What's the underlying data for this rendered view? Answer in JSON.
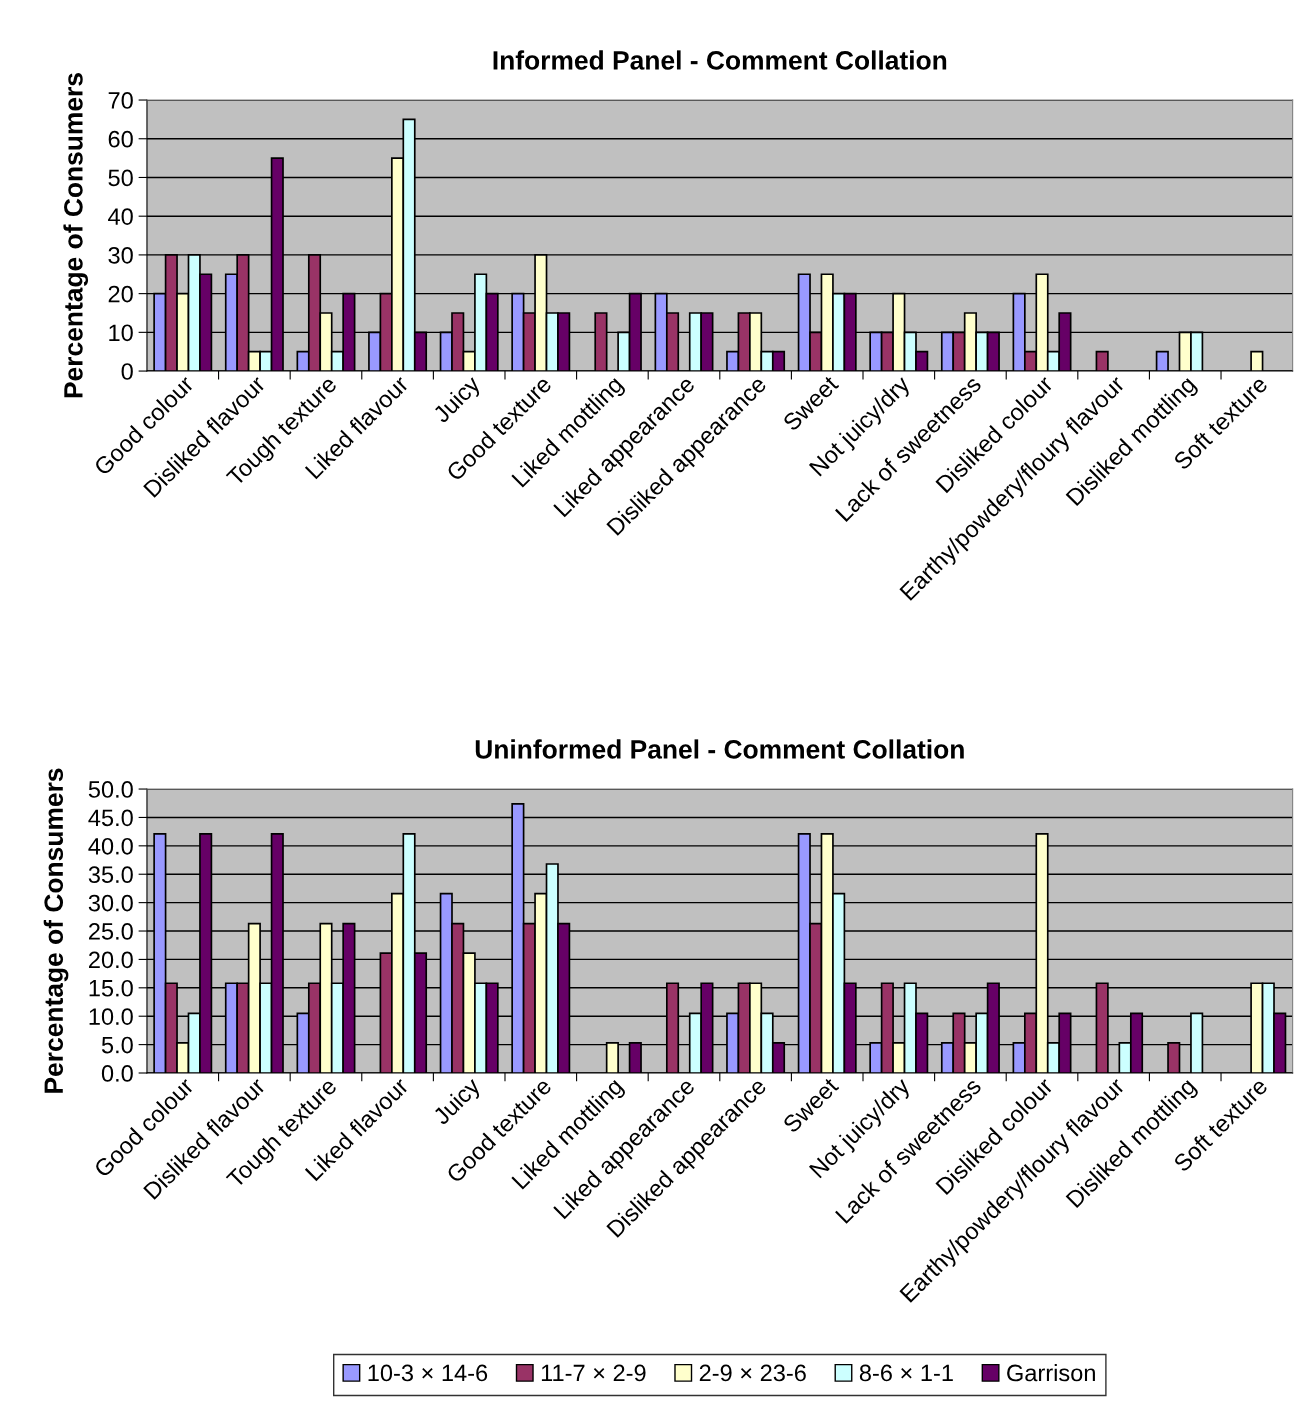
{
  "chart_data": [
    {
      "type": "bar",
      "title": "Informed Panel - Comment Collation",
      "ylabel": "Percentage of Consumers",
      "categories": [
        "Good colour",
        "Disliked flavour",
        "Tough texture",
        "Liked flavour",
        "Juicy",
        "Good texture",
        "Liked mottling",
        "Liked appearance",
        "Disliked appearance",
        "Sweet",
        "Not juicy/dry",
        "Lack of sweetness",
        "Disliked colour",
        "Earthy/powdery/floury flavour",
        "Disliked mottling",
        "Soft texture"
      ],
      "series": [
        {
          "color": "#9999ff",
          "values": [
            20,
            25,
            5,
            10,
            10,
            20,
            null,
            20,
            5,
            25,
            10,
            10,
            20,
            null,
            5,
            null
          ]
        },
        {
          "color": "#993366",
          "values": [
            30,
            30,
            30,
            20,
            15,
            15,
            15,
            15,
            15,
            10,
            10,
            10,
            5,
            5,
            null,
            null
          ]
        },
        {
          "color": "#ffffcc",
          "values": [
            20,
            5,
            15,
            55,
            5,
            30,
            null,
            null,
            15,
            25,
            20,
            15,
            25,
            null,
            10,
            5
          ]
        },
        {
          "color": "#ccffff",
          "values": [
            30,
            5,
            5,
            65,
            25,
            15,
            10,
            15,
            5,
            20,
            10,
            10,
            5,
            null,
            10,
            null
          ]
        },
        {
          "color": "#660066",
          "values": [
            25,
            55,
            20,
            10,
            20,
            15,
            20,
            15,
            5,
            20,
            5,
            10,
            15,
            null,
            null,
            null
          ]
        }
      ],
      "ylim": [
        0,
        70
      ],
      "yticks": [
        0,
        10,
        20,
        30,
        40,
        50,
        60,
        70
      ],
      "grid": "y",
      "legend": false
    },
    {
      "type": "bar",
      "title": "Uninformed Panel - Comment Collation",
      "ylabel": "Percentage of Consumers",
      "categories": [
        "Good colour",
        "Disliked flavour",
        "Tough texture",
        "Liked flavour",
        "Juicy",
        "Good texture",
        "Liked mottling",
        "Liked appearance",
        "Disliked appearance",
        "Sweet",
        "Not juicy/dry",
        "Lack of sweetness",
        "Disliked colour",
        "Earthy/powdery/floury flavour",
        "Disliked mottling",
        "Soft texture"
      ],
      "series": [
        {
          "name": "10-3 × 14-6",
          "color": "#9999ff",
          "values": [
            42.1,
            15.8,
            10.5,
            null,
            31.6,
            47.4,
            null,
            null,
            10.5,
            42.1,
            5.3,
            5.3,
            5.3,
            null,
            null,
            null
          ]
        },
        {
          "name": "11-7 × 2-9",
          "color": "#993366",
          "values": [
            15.8,
            15.8,
            15.8,
            21.1,
            26.3,
            26.3,
            null,
            15.8,
            15.8,
            26.3,
            15.8,
            10.5,
            10.5,
            15.8,
            5.3,
            null
          ]
        },
        {
          "name": "2-9 × 23-6",
          "color": "#ffffcc",
          "values": [
            5.3,
            26.3,
            26.3,
            31.6,
            21.1,
            31.6,
            5.3,
            null,
            15.8,
            42.1,
            5.3,
            5.3,
            42.1,
            null,
            null,
            15.8
          ]
        },
        {
          "name": "8-6 × 1-1",
          "color": "#ccffff",
          "values": [
            10.5,
            15.8,
            15.8,
            42.1,
            15.8,
            36.8,
            null,
            10.5,
            10.5,
            31.6,
            15.8,
            10.5,
            5.3,
            5.3,
            10.5,
            15.8
          ]
        },
        {
          "name": "Garrison",
          "color": "#660066",
          "values": [
            42.1,
            42.1,
            26.3,
            21.1,
            15.8,
            26.3,
            5.3,
            15.8,
            5.3,
            15.8,
            10.5,
            15.8,
            10.5,
            10.5,
            null,
            10.5
          ]
        }
      ],
      "ylim": [
        0,
        50
      ],
      "yticks": [
        {
          "value": 0,
          "label": "0.0"
        },
        {
          "value": 5,
          "label": "5.0"
        },
        {
          "value": 10,
          "label": "10.0"
        },
        {
          "value": 15,
          "label": "15.0"
        },
        {
          "value": 20,
          "label": "20.0"
        },
        {
          "value": 25,
          "label": "25.0"
        },
        {
          "value": 30,
          "label": "30.0"
        },
        {
          "value": 35,
          "label": "35.0"
        },
        {
          "value": 40,
          "label": "40.0"
        },
        {
          "value": 45,
          "label": "45.0"
        },
        {
          "value": 50,
          "label": "50.0"
        }
      ],
      "grid": "y",
      "legend": "bottom"
    }
  ]
}
